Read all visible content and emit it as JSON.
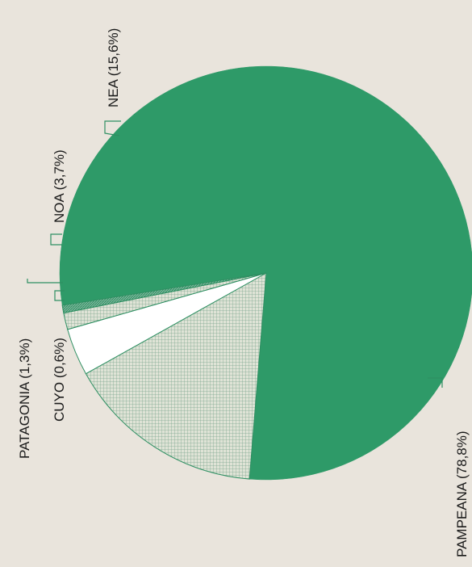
{
  "chart_data": {
    "type": "pie",
    "title": "",
    "slices": [
      {
        "label": "PAMPEANA (78,8%)",
        "value": 78.8,
        "fill": "#2e9a68",
        "pattern": "solid"
      },
      {
        "label": "NEA (15,6%)",
        "value": 15.6,
        "fill": "#cfd3c6",
        "pattern": "grid"
      },
      {
        "label": "NOA (3,7%)",
        "value": 3.7,
        "fill": "#ffffff",
        "pattern": "solid"
      },
      {
        "label": "PATAGONIA (1,3%)",
        "value": 1.3,
        "fill": "#d2d9cc",
        "pattern": "grid"
      },
      {
        "label": "CUYO (0,6%)",
        "value": 0.6,
        "fill": "#4a9a78",
        "pattern": "hatch"
      }
    ],
    "label_orientation": "rotated-vertical",
    "outline_color": "#2e8f62"
  }
}
